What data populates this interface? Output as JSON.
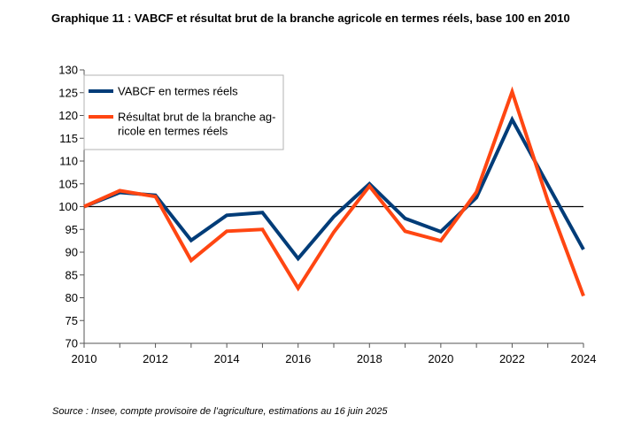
{
  "title": "Graphique 11 : VABCF et résultat brut de la branche agricole en termes réels, base 100 en 2010",
  "source": "Source : Insee, compte provisoire de l’agriculture, estimations au 16 juin 2025",
  "chart_data": {
    "type": "line",
    "x": [
      2010,
      2011,
      2012,
      2013,
      2014,
      2015,
      2016,
      2017,
      2018,
      2019,
      2020,
      2021,
      2022,
      2023,
      2024
    ],
    "x_ticks": [
      "2010",
      "2012",
      "2014",
      "2016",
      "2018",
      "2020",
      "2022",
      "2024"
    ],
    "y_ticks": [
      "70",
      "75",
      "80",
      "85",
      "90",
      "95",
      "100",
      "105",
      "110",
      "115",
      "120",
      "125",
      "130"
    ],
    "ylim": [
      70,
      130
    ],
    "xlim": [
      2010,
      2024
    ],
    "reference_line": 100,
    "grid": false,
    "legend_position": "top-left",
    "series": [
      {
        "name": "VABCF en termes réels",
        "legend_lines": [
          "VABCF en termes réels"
        ],
        "color": "#003c78",
        "values": [
          100,
          103.1,
          102.5,
          92.6,
          98.1,
          98.7,
          88.6,
          97.8,
          105.0,
          97.4,
          94.5,
          102.0,
          119.1,
          104.8,
          90.6
        ]
      },
      {
        "name": "Résultat brut de la branche agricole en termes réels",
        "legend_lines": [
          "Résultat brut de la branche ag-",
          "ricole en termes réels"
        ],
        "color": "#ff4612",
        "values": [
          100,
          103.5,
          102.2,
          88.2,
          94.6,
          95.0,
          82.1,
          94.4,
          104.5,
          94.6,
          92.5,
          103.2,
          125.2,
          101.3,
          80.4
        ]
      }
    ]
  }
}
